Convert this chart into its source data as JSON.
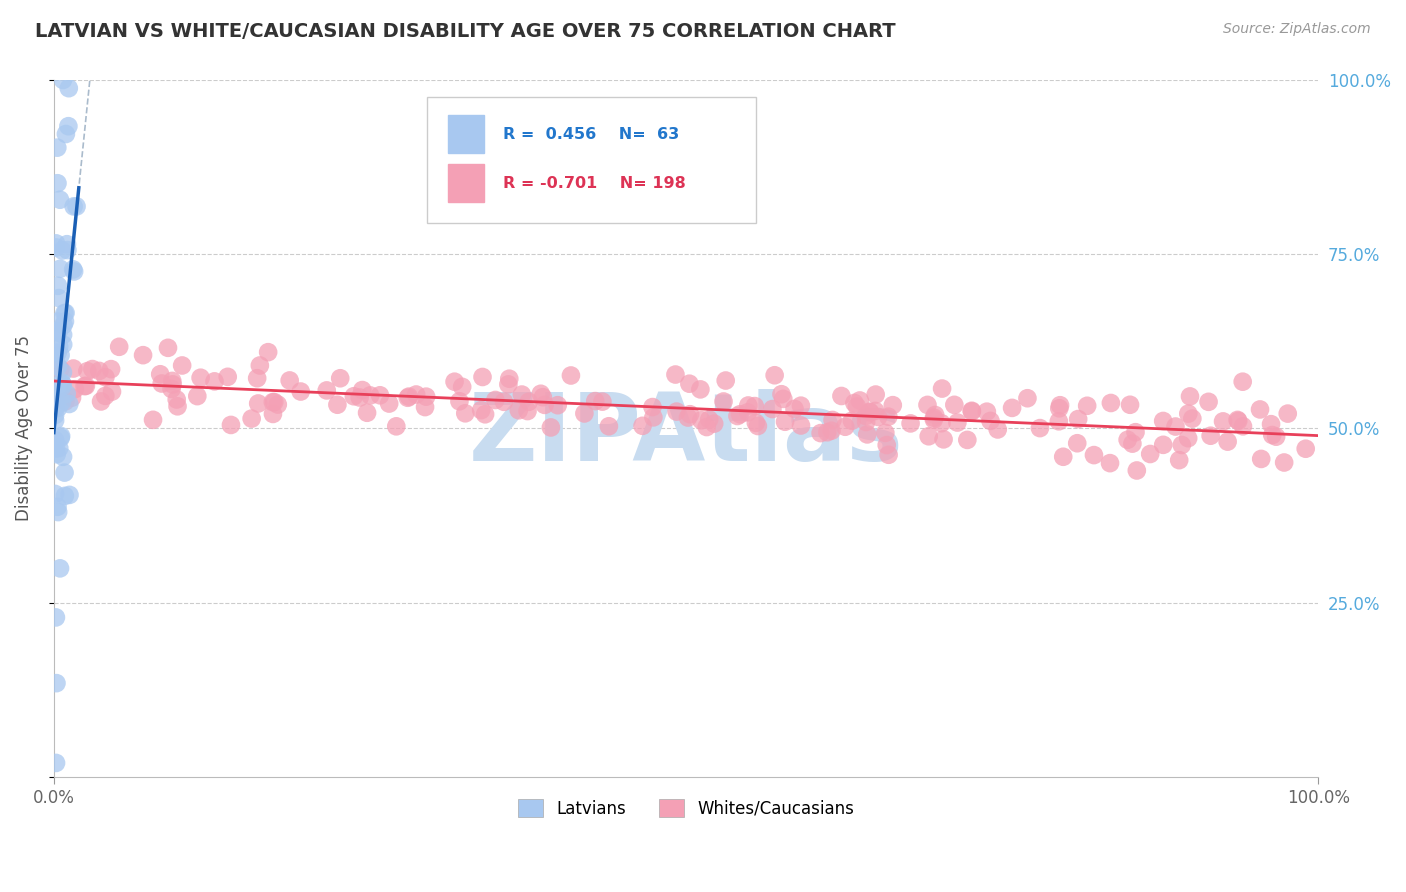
{
  "title": "LATVIAN VS WHITE/CAUCASIAN DISABILITY AGE OVER 75 CORRELATION CHART",
  "source": "Source: ZipAtlas.com",
  "ylabel": "Disability Age Over 75",
  "xlim": [
    0,
    1
  ],
  "ylim": [
    0,
    1
  ],
  "label1": "Latvians",
  "label2": "Whites/Caucasians",
  "color_blue": "#A8C8F0",
  "color_pink": "#F4A0B5",
  "trend_blue": "#1A5FB5",
  "trend_pink": "#E8405A",
  "dashed_color": "#AABBCC",
  "watermark_color": "#C8DCF0",
  "background_color": "#FFFFFF",
  "grid_color": "#CCCCCC",
  "legend_r1": "R =  0.456",
  "legend_n1": "N=  63",
  "legend_r2": "R = -0.701",
  "legend_n2": "N= 198",
  "legend_text_blue": "#2277CC",
  "legend_text_pink": "#DD3355",
  "right_tick_color": "#55AADD"
}
